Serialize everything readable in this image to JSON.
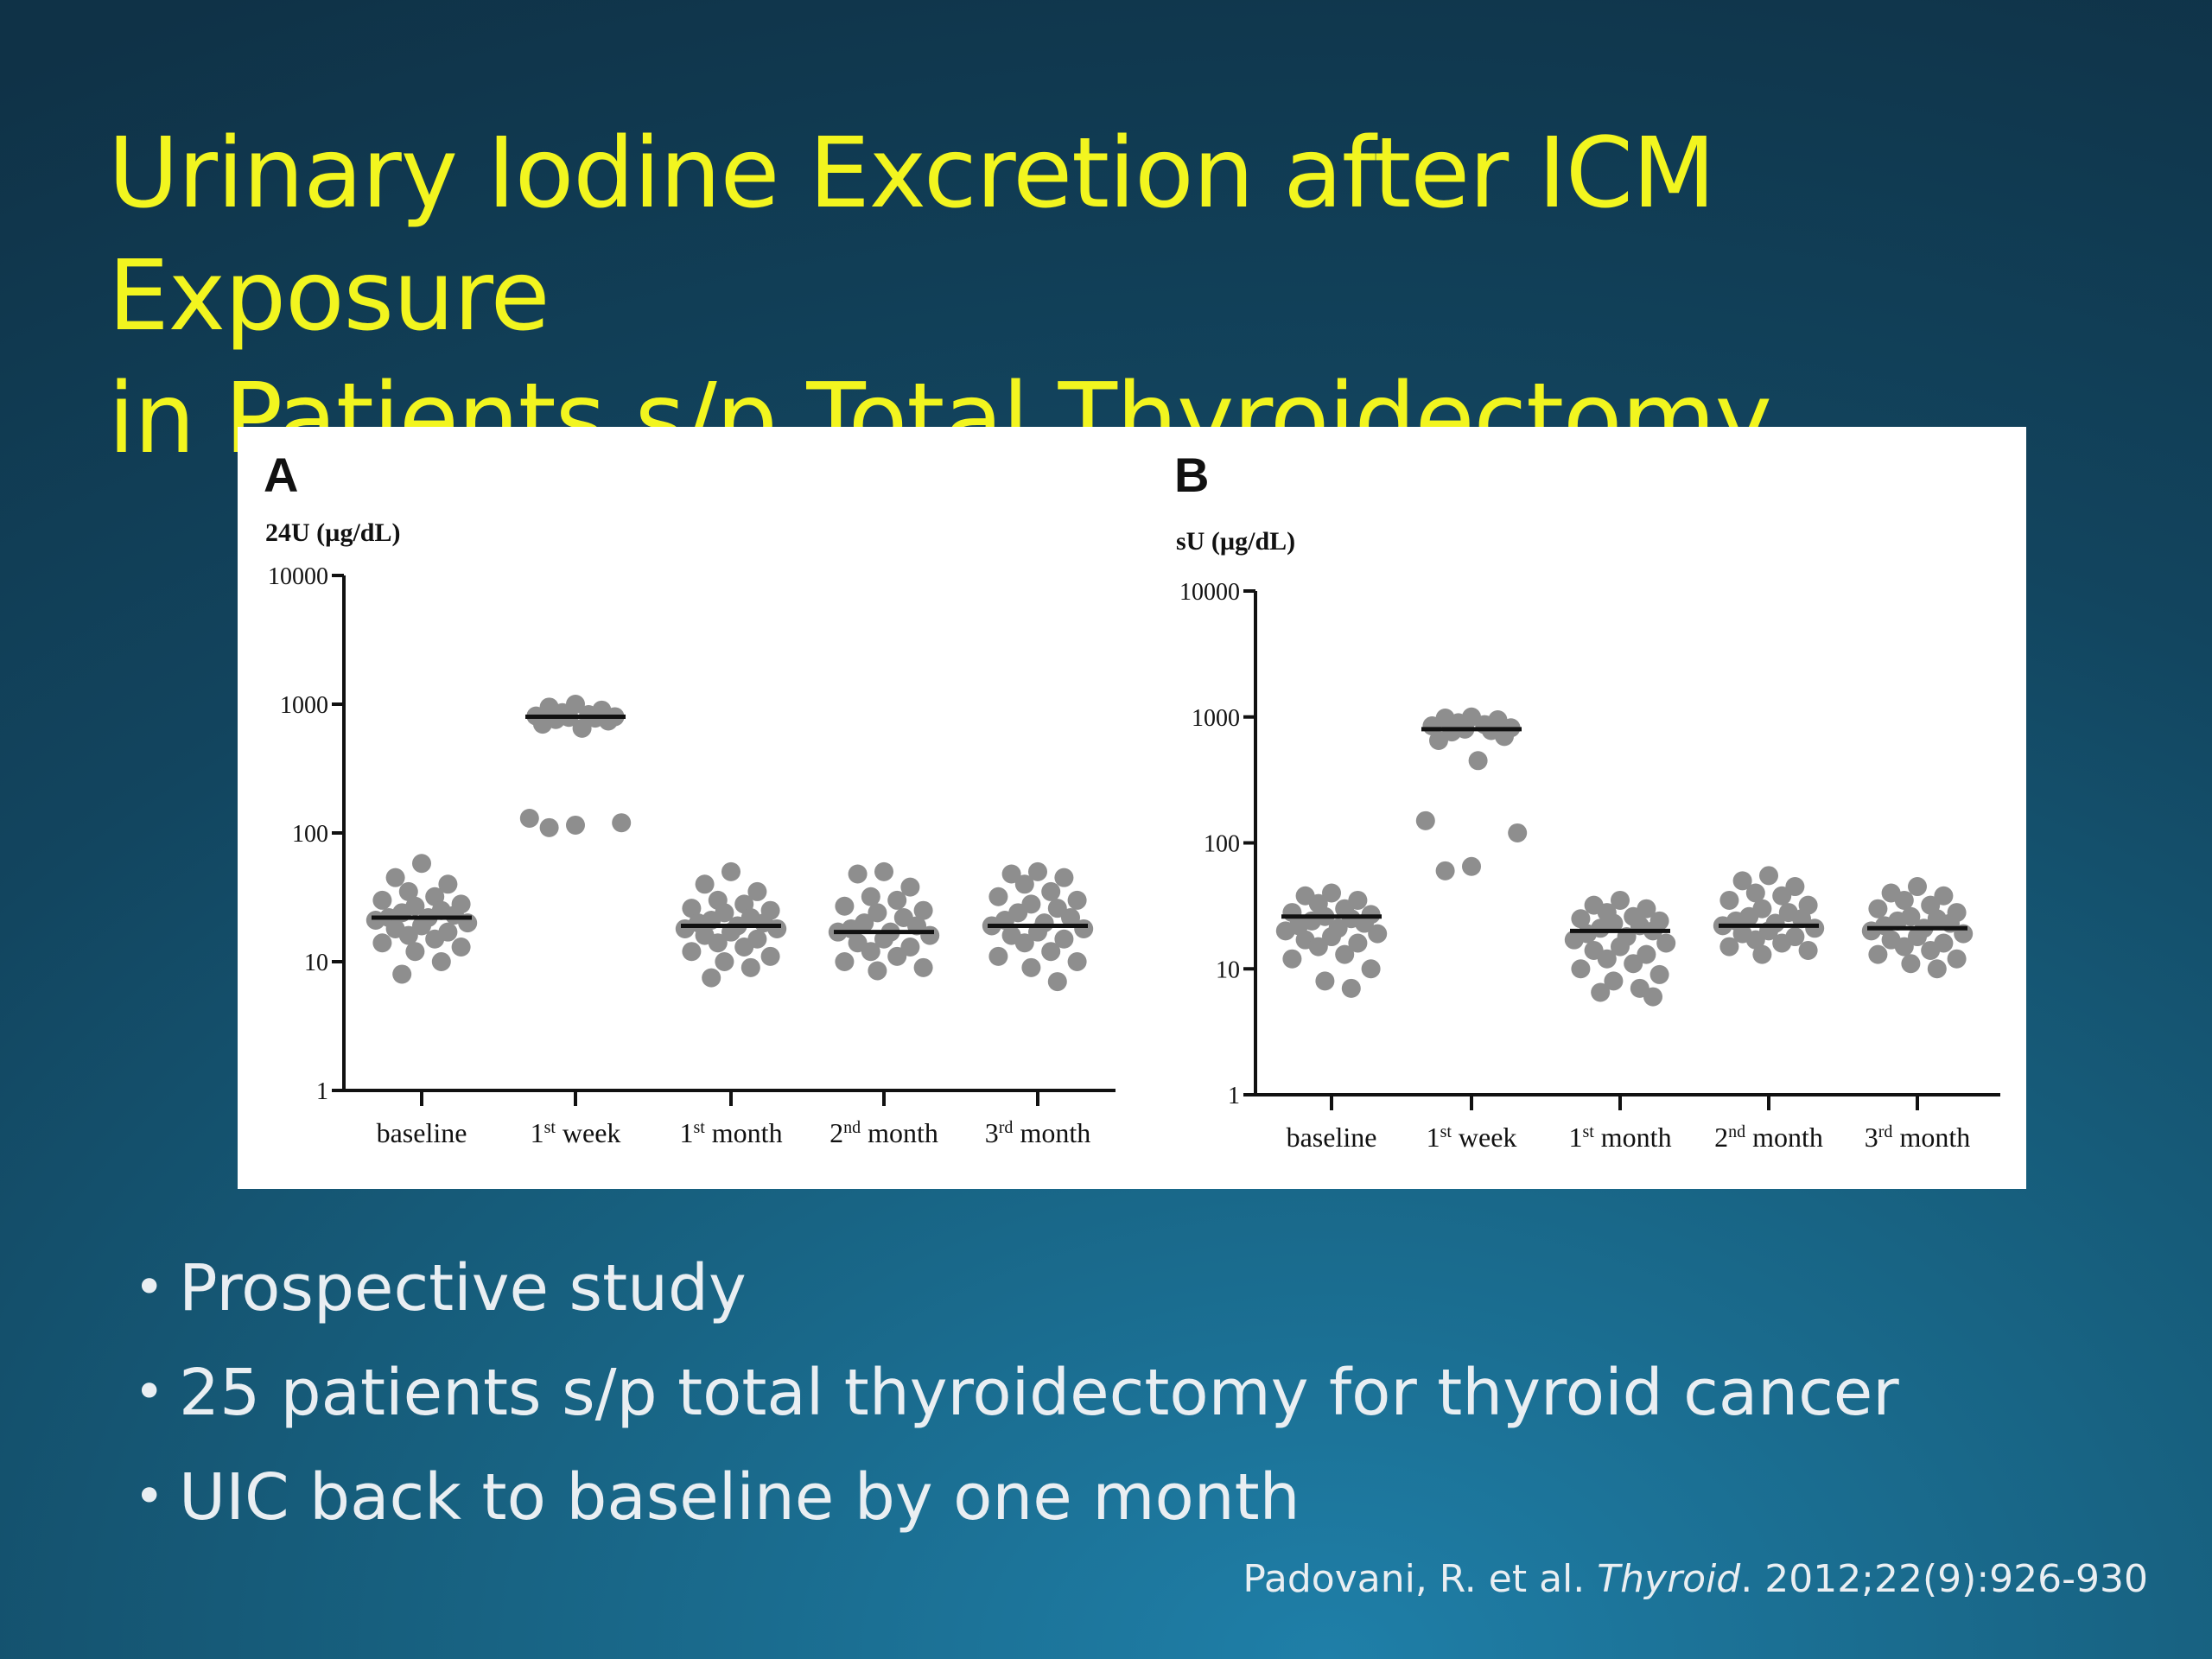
{
  "slide": {
    "title_line1": "Urinary Iodine Excretion after ICM Exposure",
    "title_line2": "in Patients s/p Total Thyroidectomy",
    "bullets": [
      "Prospective study",
      "25 patients s/p total thyroidectomy for thyroid cancer",
      "UIC back to baseline by one month"
    ],
    "citation_authors": "Padovani, R. et al.",
    "citation_journal": "Thyroid",
    "citation_rest": ". 2012;22(9):926-930",
    "colors": {
      "title": "#f2f51f",
      "text": "#e9eef2",
      "dots": "#8e8e8e"
    }
  },
  "chart_data": [
    {
      "type": "scatter",
      "panel": "A",
      "ylabel": "24U (µg/dL)",
      "yscale": "log",
      "ylim": [
        1,
        10000
      ],
      "yticks": [
        "1",
        "10",
        "100",
        "1000",
        "10000"
      ],
      "categories": [
        "baseline",
        "1st week",
        "1st month",
        "2nd month",
        "3rd month"
      ],
      "category_labels": [
        {
          "main": "baseline",
          "sup": "",
          "rest": ""
        },
        {
          "main": "1",
          "sup": "st",
          "rest": " week"
        },
        {
          "main": "1",
          "sup": "st",
          "rest": " month"
        },
        {
          "main": "2",
          "sup": "nd",
          "rest": " month"
        },
        {
          "main": "3",
          "sup": "rd",
          "rest": " month"
        }
      ],
      "medians": [
        22,
        800,
        19,
        17,
        19
      ],
      "points": [
        [
          58,
          45,
          40,
          35,
          32,
          30,
          28,
          27,
          25,
          24,
          23,
          22,
          22,
          21,
          20,
          19,
          18,
          17,
          16,
          15,
          14,
          13,
          12,
          10,
          8
        ],
        [
          1000,
          950,
          900,
          860,
          830,
          810,
          800,
          790,
          780,
          760,
          740,
          700,
          650,
          130,
          120,
          115,
          110
        ],
        [
          50,
          40,
          35,
          30,
          28,
          26,
          25,
          24,
          22,
          21,
          20,
          20,
          19,
          18,
          18,
          17,
          16,
          15,
          14,
          13,
          12,
          11,
          10,
          9,
          7.5
        ],
        [
          50,
          48,
          38,
          32,
          30,
          27,
          25,
          24,
          22,
          20,
          19,
          18,
          17,
          17,
          16,
          15,
          14,
          13,
          12,
          11,
          10,
          9,
          8.5
        ],
        [
          50,
          48,
          45,
          40,
          35,
          32,
          30,
          28,
          26,
          24,
          22,
          21,
          20,
          19,
          18,
          17,
          16,
          15,
          14,
          12,
          11,
          10,
          9,
          7
        ]
      ]
    },
    {
      "type": "scatter",
      "panel": "B",
      "ylabel": "sU (µg/dL)",
      "yscale": "log",
      "ylim": [
        1,
        10000
      ],
      "yticks": [
        "1",
        "10",
        "100",
        "1000",
        "10000"
      ],
      "categories": [
        "baseline",
        "1st week",
        "1st month",
        "2nd month",
        "3rd month"
      ],
      "category_labels": [
        {
          "main": "baseline",
          "sup": "",
          "rest": ""
        },
        {
          "main": "1",
          "sup": "st",
          "rest": " week"
        },
        {
          "main": "1",
          "sup": "st",
          "rest": " month"
        },
        {
          "main": "2",
          "sup": "nd",
          "rest": " month"
        },
        {
          "main": "3",
          "sup": "rd",
          "rest": " month"
        }
      ],
      "medians": [
        26,
        800,
        20,
        22,
        21
      ],
      "points": [
        [
          40,
          38,
          35,
          33,
          30,
          28,
          27,
          26,
          25,
          24,
          23,
          22,
          21,
          20,
          19,
          18,
          17,
          16,
          15,
          13,
          12,
          10,
          8,
          7
        ],
        [
          1000,
          980,
          950,
          900,
          870,
          850,
          820,
          800,
          780,
          760,
          700,
          650,
          450,
          150,
          120,
          65,
          60
        ],
        [
          35,
          32,
          30,
          28,
          26,
          25,
          24,
          23,
          22,
          21,
          20,
          19,
          18,
          17,
          16,
          15,
          14,
          13,
          12,
          11,
          10,
          9,
          8,
          7,
          6.5,
          6
        ],
        [
          55,
          50,
          45,
          40,
          38,
          35,
          32,
          30,
          28,
          26,
          25,
          24,
          23,
          22,
          21,
          20,
          19,
          18,
          17,
          16,
          15,
          14,
          13
        ],
        [
          45,
          40,
          38,
          35,
          32,
          30,
          28,
          26,
          25,
          24,
          23,
          22,
          21,
          20,
          19,
          18,
          17,
          16,
          15,
          14,
          13,
          12,
          11,
          10
        ]
      ]
    }
  ]
}
